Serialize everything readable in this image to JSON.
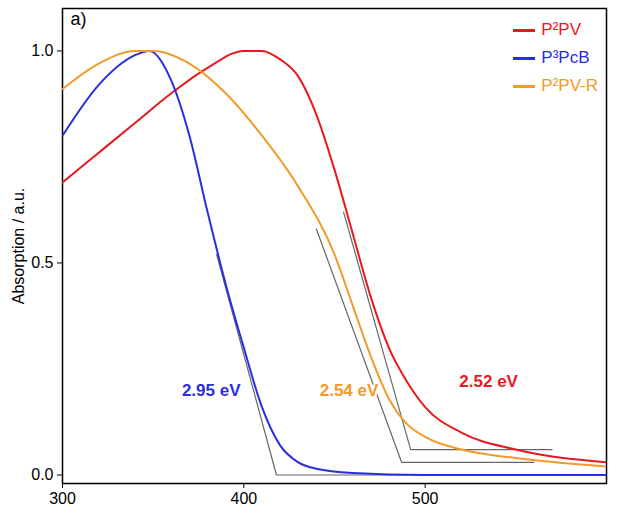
{
  "chart_data": {
    "type": "line",
    "panel_label": "a)",
    "y_label": "Absorption / a.u.",
    "xlim": [
      300,
      600
    ],
    "xticks": [
      300,
      400,
      500
    ],
    "ylim": [
      -0.02,
      1.1
    ],
    "yticks": [
      {
        "value": 0,
        "label": "0.0"
      },
      {
        "value": 0.5,
        "label": "0.5"
      },
      {
        "value": 1,
        "label": "1.0"
      }
    ],
    "grid": false,
    "legend": "top-right",
    "series": [
      {
        "name": "P²PV",
        "color": "#e8191e",
        "x": [
          300,
          320,
          340,
          360,
          380,
          400,
          410,
          420,
          430,
          440,
          450,
          460,
          470,
          480,
          490,
          500,
          520,
          550,
          600
        ],
        "values": [
          0.69,
          0.76,
          0.83,
          0.9,
          0.96,
          1.0,
          1.0,
          0.98,
          0.94,
          0.85,
          0.72,
          0.57,
          0.42,
          0.3,
          0.22,
          0.16,
          0.1,
          0.06,
          0.03
        ]
      },
      {
        "name": "P³PcB",
        "color": "#2a2ee0",
        "x": [
          300,
          320,
          340,
          348,
          360,
          370,
          380,
          390,
          400,
          410,
          420,
          430,
          440,
          460,
          500,
          600
        ],
        "values": [
          0.8,
          0.92,
          0.99,
          1.0,
          0.93,
          0.8,
          0.62,
          0.45,
          0.3,
          0.16,
          0.07,
          0.03,
          0.015,
          0.005,
          0.0,
          0.0
        ]
      },
      {
        "name": "P²PV-R",
        "color": "#f39a28",
        "x": [
          300,
          320,
          340,
          350,
          370,
          390,
          410,
          430,
          450,
          460,
          470,
          480,
          490,
          500,
          520,
          550,
          600
        ],
        "values": [
          0.91,
          0.97,
          1.0,
          1.0,
          0.97,
          0.9,
          0.8,
          0.68,
          0.52,
          0.4,
          0.28,
          0.18,
          0.12,
          0.09,
          0.06,
          0.04,
          0.02
        ]
      }
    ],
    "tangent_lines": [
      {
        "color": "#666666",
        "line_style": "dashed",
        "x": [
          385,
          418,
          600
        ],
        "y": [
          0.52,
          0.0,
          0.0
        ]
      },
      {
        "color": "#666666",
        "line_style": "dashed",
        "x": [
          440,
          487,
          560
        ],
        "y": [
          0.58,
          0.03,
          0.03
        ]
      },
      {
        "color": "#666666",
        "line_style": "dashed",
        "x": [
          455,
          492,
          570
        ],
        "y": [
          0.62,
          0.06,
          0.06
        ]
      }
    ],
    "annotations": [
      {
        "text": "2.95 eV",
        "x": 382,
        "y": 0.2,
        "color": "#2a2ee0"
      },
      {
        "text": "2.54 eV",
        "x": 458,
        "y": 0.2,
        "color": "#f39a28"
      },
      {
        "text": "2.52 eV",
        "x": 535,
        "y": 0.22,
        "color": "#e8191e"
      }
    ]
  }
}
